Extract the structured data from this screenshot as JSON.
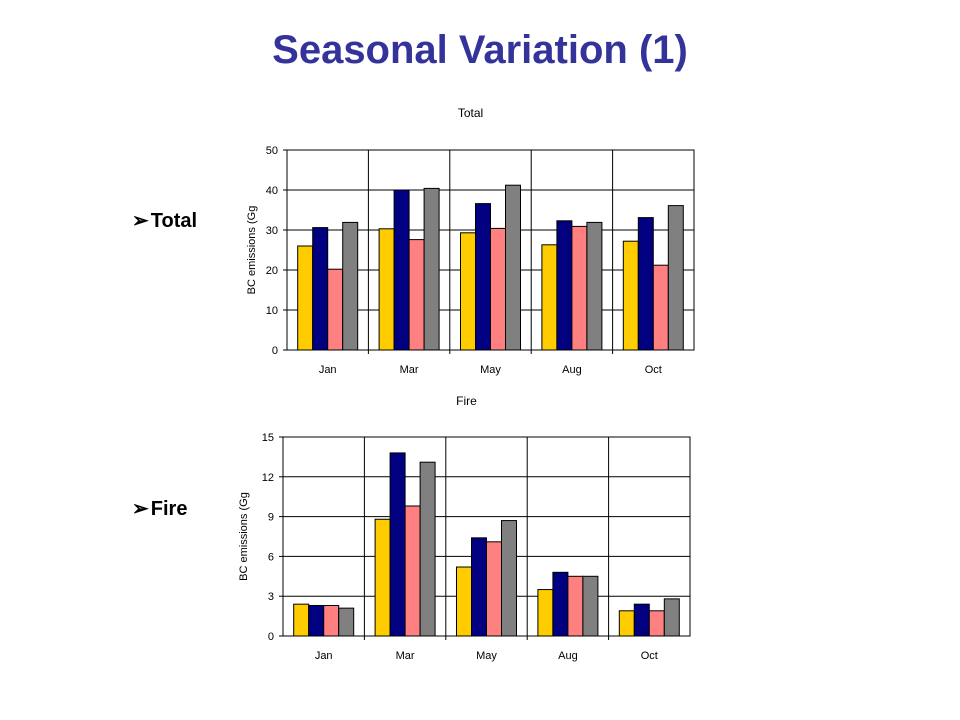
{
  "slide": {
    "title": "Seasonal Variation (1)"
  },
  "bullets": [
    {
      "label": "Total",
      "icon": "arrow-bullet-icon"
    },
    {
      "label": "Fire",
      "icon": "arrow-bullet-icon"
    }
  ],
  "colors": {
    "title": "#333399",
    "series": [
      "#FFCC00",
      "#000080",
      "#FF8080",
      "#808080"
    ]
  },
  "chart_data": [
    {
      "type": "bar",
      "title": "Total",
      "ylabel": "BC emissions (Gg",
      "xlabel": "",
      "categories": [
        "Jan",
        "Mar",
        "May",
        "Aug",
        "Oct"
      ],
      "ylim": [
        0,
        50
      ],
      "yticks": [
        0,
        10,
        20,
        30,
        40,
        50
      ],
      "grid": true,
      "series": [
        {
          "values": [
            26,
            30.3,
            29.3,
            26.3,
            27.2
          ]
        },
        {
          "values": [
            30.6,
            40,
            36.6,
            32.3,
            33.1
          ]
        },
        {
          "values": [
            20.2,
            27.6,
            30.4,
            30.9,
            21.2
          ]
        },
        {
          "values": [
            31.9,
            40.4,
            41.2,
            31.9,
            36.1
          ]
        }
      ]
    },
    {
      "type": "bar",
      "title": "Fire",
      "ylabel": "BC emissions (Gg",
      "xlabel": "",
      "categories": [
        "Jan",
        "Mar",
        "May",
        "Aug",
        "Oct"
      ],
      "ylim": [
        0,
        15
      ],
      "yticks": [
        0,
        3,
        6,
        9,
        12,
        15
      ],
      "grid": true,
      "series": [
        {
          "values": [
            2.4,
            8.8,
            5.2,
            3.5,
            1.9
          ]
        },
        {
          "values": [
            2.3,
            13.8,
            7.4,
            4.8,
            2.4
          ]
        },
        {
          "values": [
            2.3,
            9.8,
            7.1,
            4.5,
            1.9
          ]
        },
        {
          "values": [
            2.1,
            13.1,
            8.7,
            4.5,
            2.8
          ]
        }
      ]
    }
  ]
}
